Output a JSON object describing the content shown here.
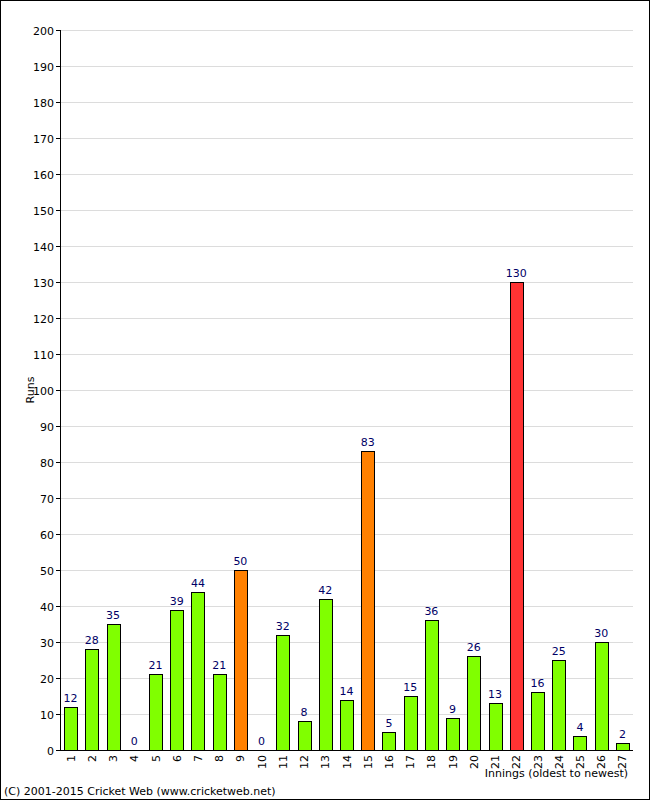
{
  "chart_data": {
    "type": "bar",
    "categories": [
      "1",
      "2",
      "3",
      "4",
      "5",
      "6",
      "7",
      "8",
      "9",
      "10",
      "11",
      "12",
      "13",
      "14",
      "15",
      "16",
      "17",
      "18",
      "19",
      "20",
      "21",
      "22",
      "23",
      "24",
      "25",
      "26",
      "27"
    ],
    "values": [
      12,
      28,
      35,
      0,
      21,
      39,
      44,
      21,
      50,
      0,
      32,
      8,
      42,
      14,
      83,
      5,
      15,
      36,
      9,
      26,
      13,
      130,
      16,
      25,
      4,
      30,
      2
    ],
    "colors": [
      "#80ff00",
      "#80ff00",
      "#80ff00",
      "#80ff00",
      "#80ff00",
      "#80ff00",
      "#80ff00",
      "#80ff00",
      "#ff8000",
      "#80ff00",
      "#80ff00",
      "#80ff00",
      "#80ff00",
      "#80ff00",
      "#ff8000",
      "#80ff00",
      "#80ff00",
      "#80ff00",
      "#80ff00",
      "#80ff00",
      "#80ff00",
      "#ff3333",
      "#80ff00",
      "#80ff00",
      "#80ff00",
      "#80ff00",
      "#80ff00"
    ],
    "y_label": "Runs",
    "x_label": "Innings (oldest to newest)",
    "annotations": [
      "(C) 2001-2015 Cricket Web (www.cricketweb.net)"
    ],
    "ylim": [
      0,
      200
    ],
    "yticks": [
      0,
      10,
      20,
      30,
      40,
      50,
      60,
      70,
      80,
      90,
      100,
      110,
      120,
      130,
      140,
      150,
      160,
      170,
      180,
      190,
      200
    ],
    "grid": true,
    "data_labels": true
  }
}
